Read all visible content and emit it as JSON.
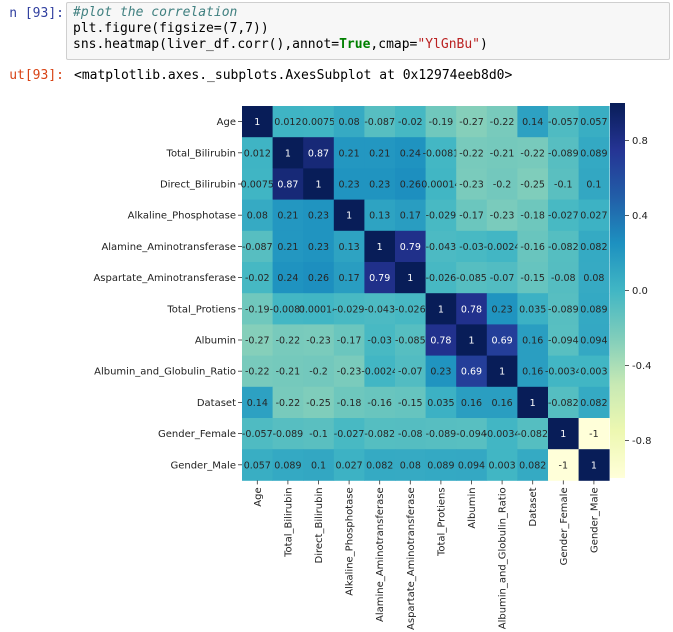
{
  "notebook": {
    "in_prompt": "n [93]:",
    "code_comment": "#plot the correlation",
    "code_line1": "plt.figure(figsize=(7,7))",
    "code_line2_a": "sns.heatmap(liver_df.corr(),annot=",
    "code_line2_kw": "True",
    "code_line2_b": ",cmap=",
    "code_line2_str": "\"YlGnBu\"",
    "code_line2_c": ")",
    "out_prompt": "ut[93]:",
    "out_text": "<matplotlib.axes._subplots.AxesSubplot at 0x12974eeb8d0>"
  },
  "chart_data": {
    "type": "heatmap",
    "colormap": "YlGnBu",
    "vmin": -1,
    "vmax": 1,
    "colorbar_ticks": [
      "0.8",
      "0.4",
      "0.0",
      "-0.4",
      "-0.8"
    ],
    "colorbar_tick_values": [
      0.8,
      0.4,
      0.0,
      -0.4,
      -0.8
    ],
    "labels": [
      "Age",
      "Total_Bilirubin",
      "Direct_Bilirubin",
      "Alkaline_Phosphotase",
      "Alamine_Aminotransferase",
      "Aspartate_Aminotransferase",
      "Total_Protiens",
      "Albumin",
      "Albumin_and_Globulin_Ratio",
      "Dataset",
      "Gender_Female",
      "Gender_Male"
    ],
    "values": [
      [
        1,
        0.012,
        0.0075,
        0.08,
        -0.087,
        -0.02,
        -0.19,
        -0.27,
        -0.22,
        0.14,
        -0.057,
        0.057
      ],
      [
        0.012,
        1,
        0.87,
        0.21,
        0.21,
        0.24,
        -0.0081,
        -0.22,
        -0.21,
        -0.22,
        -0.089,
        0.089
      ],
      [
        0.0075,
        0.87,
        1,
        0.23,
        0.23,
        0.26,
        0.00014,
        -0.23,
        -0.2,
        -0.25,
        -0.1,
        0.1
      ],
      [
        0.08,
        0.21,
        0.23,
        1,
        0.13,
        0.17,
        -0.029,
        -0.17,
        -0.23,
        -0.18,
        -0.027,
        0.027
      ],
      [
        -0.087,
        0.21,
        0.23,
        0.13,
        1,
        0.79,
        -0.043,
        -0.03,
        -0.0024,
        -0.16,
        -0.082,
        0.082
      ],
      [
        -0.02,
        0.24,
        0.26,
        0.17,
        0.79,
        1,
        -0.026,
        -0.085,
        -0.07,
        -0.15,
        -0.08,
        0.08
      ],
      [
        -0.19,
        -0.0081,
        0.00014,
        -0.029,
        -0.043,
        -0.026,
        1,
        0.78,
        0.23,
        0.035,
        -0.089,
        0.089
      ],
      [
        -0.27,
        -0.22,
        -0.23,
        -0.17,
        -0.03,
        -0.085,
        0.78,
        1,
        0.69,
        0.16,
        -0.094,
        0.094
      ],
      [
        -0.22,
        -0.21,
        -0.2,
        -0.23,
        -0.0024,
        -0.07,
        0.23,
        0.69,
        1,
        0.16,
        -0.0034,
        0.003
      ],
      [
        0.14,
        -0.22,
        -0.25,
        -0.18,
        -0.16,
        -0.15,
        0.035,
        0.16,
        0.16,
        1,
        -0.082,
        0.082
      ],
      [
        -0.057,
        -0.089,
        -0.1,
        -0.027,
        -0.082,
        -0.08,
        -0.089,
        -0.094,
        -0.0034,
        -0.082,
        1,
        -1
      ],
      [
        0.057,
        0.089,
        0.1,
        0.027,
        0.082,
        0.08,
        0.089,
        0.094,
        0.003,
        0.082,
        -1,
        1
      ]
    ],
    "annotations": [
      [
        "1",
        "0.012",
        "0.0075",
        "0.08",
        "-0.087",
        "-0.02",
        "-0.19",
        "-0.27",
        "-0.22",
        "0.14",
        "-0.057",
        "0.057"
      ],
      [
        "0.012",
        "1",
        "0.87",
        "0.21",
        "0.21",
        "0.24",
        "-0.0081",
        "-0.22",
        "-0.21",
        "-0.22",
        "-0.089",
        "0.089"
      ],
      [
        "0.0075",
        "0.87",
        "1",
        "0.23",
        "0.23",
        "0.26",
        "0.00014",
        "-0.23",
        "-0.2",
        "-0.25",
        "-0.1",
        "0.1"
      ],
      [
        "0.08",
        "0.21",
        "0.23",
        "1",
        "0.13",
        "0.17",
        "-0.029",
        "-0.17",
        "-0.23",
        "-0.18",
        "-0.027",
        "0.027"
      ],
      [
        "-0.087",
        "0.21",
        "0.23",
        "0.13",
        "1",
        "0.79",
        "-0.043",
        "-0.03",
        "-0.0024",
        "-0.16",
        "-0.082",
        "0.082"
      ],
      [
        "-0.02",
        "0.24",
        "0.26",
        "0.17",
        "0.79",
        "1",
        "-0.026",
        "-0.085",
        "-0.07",
        "-0.15",
        "-0.08",
        "0.08"
      ],
      [
        "-0.19",
        "-0.0081",
        "0.00014",
        "-0.029",
        "-0.043",
        "-0.026",
        "1",
        "0.78",
        "0.23",
        "0.035",
        "-0.089",
        "0.089"
      ],
      [
        "-0.27",
        "-0.22",
        "-0.23",
        "-0.17",
        "-0.03",
        "-0.085",
        "0.78",
        "1",
        "0.69",
        "0.16",
        "-0.094",
        "0.094"
      ],
      [
        "-0.22",
        "-0.21",
        "-0.2",
        "-0.23",
        "-0.0024",
        "-0.07",
        "0.23",
        "0.69",
        "1",
        "0.16",
        "-0.0034",
        "0.003"
      ],
      [
        "0.14",
        "-0.22",
        "-0.25",
        "-0.18",
        "-0.16",
        "-0.15",
        "0.035",
        "0.16",
        "0.16",
        "1",
        "-0.082",
        "0.082"
      ],
      [
        "-0.057",
        "-0.089",
        "-0.1",
        "-0.027",
        "-0.082",
        "-0.08",
        "-0.089",
        "-0.094",
        "-0.0034",
        "-0.082",
        "1",
        "-1"
      ],
      [
        "0.057",
        "0.089",
        "0.1",
        "0.027",
        "0.082",
        "0.08",
        "0.089",
        "0.094",
        "0.003",
        "0.082",
        "-1",
        "1"
      ]
    ]
  }
}
